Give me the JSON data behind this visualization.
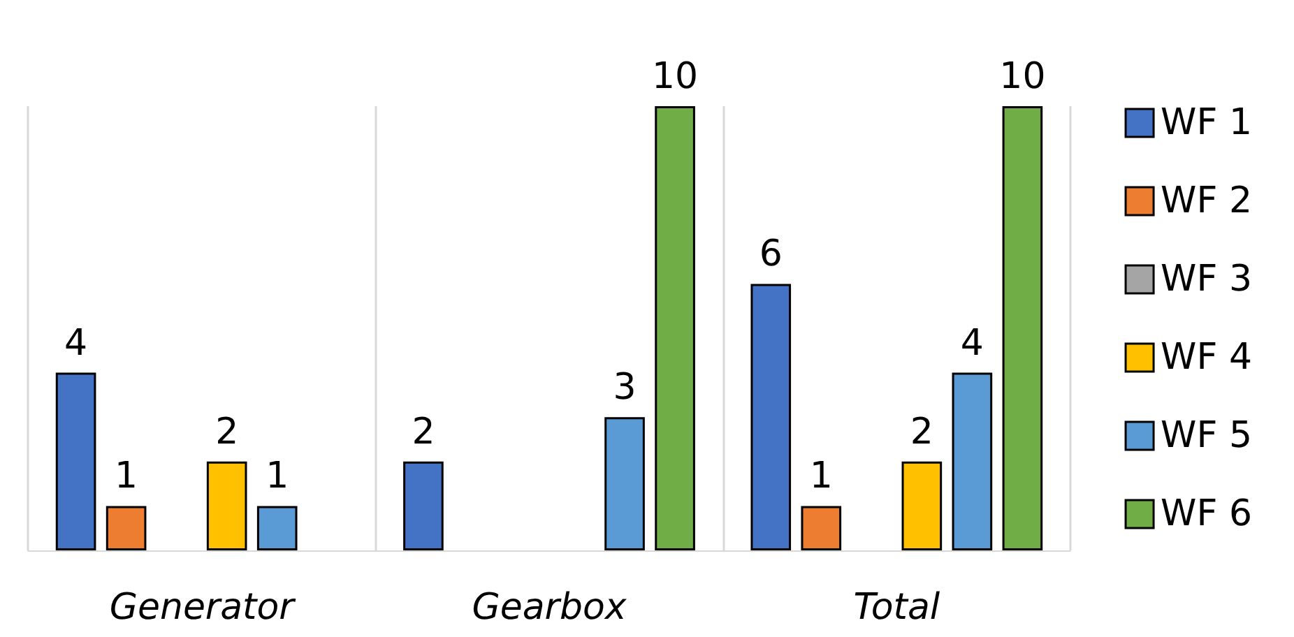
{
  "chart_data": {
    "type": "bar",
    "categories": [
      "Generator",
      "Gearbox",
      "Total"
    ],
    "series": [
      {
        "name": "WF 1",
        "color": "#4472c4",
        "values": [
          4,
          2,
          6
        ]
      },
      {
        "name": "WF 2",
        "color": "#ed7d31",
        "values": [
          1,
          null,
          1
        ]
      },
      {
        "name": "WF 3",
        "color": "#a5a5a5",
        "values": [
          null,
          null,
          null
        ]
      },
      {
        "name": "WF 4",
        "color": "#ffc000",
        "values": [
          2,
          null,
          2
        ]
      },
      {
        "name": "WF 5",
        "color": "#5b9bd5",
        "values": [
          1,
          3,
          4
        ]
      },
      {
        "name": "WF 6",
        "color": "#70ad47",
        "values": [
          null,
          10,
          10
        ]
      }
    ],
    "data_labels": true,
    "legend": "right",
    "grid": "x",
    "tick_labels": "x"
  }
}
